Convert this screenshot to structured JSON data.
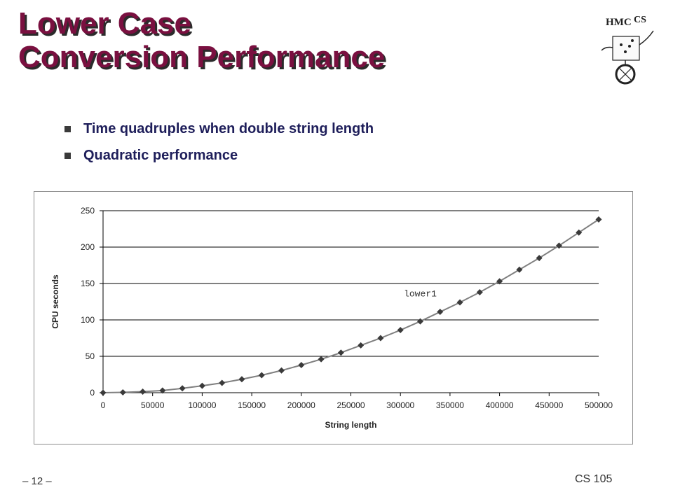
{
  "slide": {
    "title_line1": "Lower Case",
    "title_line2": "Conversion Performance",
    "bullets": [
      "Time quadruples when double string length",
      "Quadratic performance"
    ],
    "footer_left": "– 12 –",
    "footer_right": "CS 105",
    "logo_text": "HMC CS"
  },
  "colors": {
    "title": "#7a1040",
    "bullet_text": "#1e1e5a",
    "line": "#808080",
    "marker": "#3a3a3a"
  },
  "chart_data": {
    "type": "line",
    "title": "",
    "xlabel": "String length",
    "ylabel": "CPU seconds",
    "xlim": [
      0,
      500000
    ],
    "ylim": [
      0,
      250
    ],
    "x_ticks": [
      0,
      50000,
      100000,
      150000,
      200000,
      250000,
      300000,
      350000,
      400000,
      450000,
      500000
    ],
    "y_ticks": [
      0,
      50,
      100,
      150,
      200,
      250
    ],
    "grid": "horizontal",
    "annotations": [
      {
        "text": "lower1",
        "x": 320000,
        "y": 136
      }
    ],
    "series": [
      {
        "name": "lower1",
        "x": [
          0,
          20000,
          40000,
          60000,
          80000,
          100000,
          120000,
          140000,
          160000,
          180000,
          200000,
          220000,
          240000,
          260000,
          280000,
          300000,
          320000,
          340000,
          360000,
          380000,
          400000,
          420000,
          440000,
          460000,
          480000,
          500000
        ],
        "y": [
          0,
          0.5,
          1.5,
          3,
          6,
          9.5,
          13.5,
          18.5,
          24,
          30.5,
          38,
          46,
          55,
          65,
          75,
          86,
          98,
          111,
          124,
          138,
          153,
          169,
          185,
          202,
          220,
          238
        ]
      }
    ]
  }
}
